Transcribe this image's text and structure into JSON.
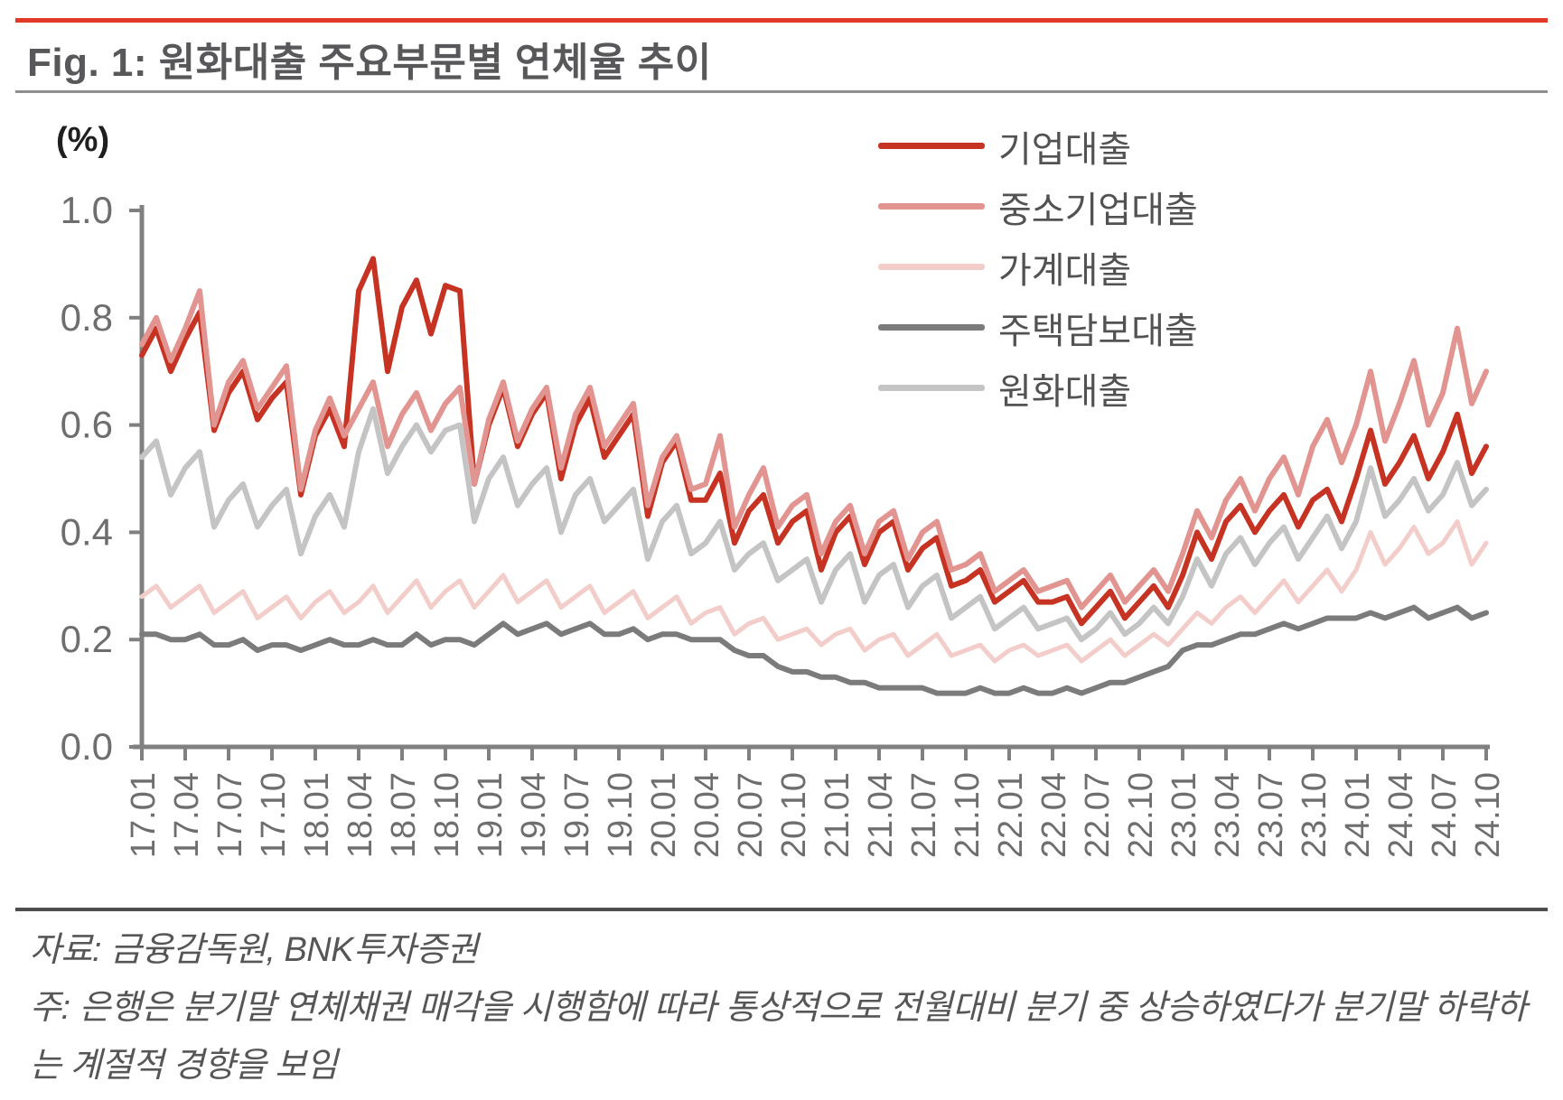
{
  "header": {
    "title": "Fig. 1: 원화대출 주요부문별 연체율 추이"
  },
  "chart_data": {
    "type": "line",
    "title": "원화대출 주요부문별 연체율 추이",
    "unit_label": "(%)",
    "ylabel": "(%)",
    "xlabel": "",
    "ylim": [
      0.0,
      1.0
    ],
    "y_ticks": [
      "0.0",
      "0.2",
      "0.4",
      "0.6",
      "0.8",
      "1.0"
    ],
    "grid": false,
    "legend_position": "upper-right-inside",
    "x_frequency": "monthly",
    "x_start": "17.01",
    "x_end": "24.10",
    "points_per_series": 94,
    "x_tick_labels": [
      "17.01",
      "17.04",
      "17.07",
      "17.10",
      "18.01",
      "18.04",
      "18.07",
      "18.10",
      "19.01",
      "19.04",
      "19.07",
      "19.10",
      "20.01",
      "20.04",
      "20.07",
      "20.10",
      "21.01",
      "21.04",
      "21.07",
      "21.10",
      "22.01",
      "22.04",
      "22.07",
      "22.10",
      "23.01",
      "23.04",
      "23.07",
      "23.10",
      "24.01",
      "24.04",
      "24.07",
      "24.10"
    ],
    "series": [
      {
        "name": "기업대출",
        "color": "#c63322",
        "stroke_width": 6,
        "values": [
          0.73,
          0.78,
          0.7,
          0.76,
          0.81,
          0.59,
          0.66,
          0.7,
          0.61,
          0.65,
          0.68,
          0.47,
          0.58,
          0.63,
          0.56,
          0.85,
          0.91,
          0.7,
          0.82,
          0.87,
          0.77,
          0.86,
          0.85,
          0.49,
          0.6,
          0.67,
          0.56,
          0.62,
          0.66,
          0.5,
          0.6,
          0.65,
          0.54,
          0.58,
          0.62,
          0.43,
          0.53,
          0.57,
          0.46,
          0.46,
          0.51,
          0.38,
          0.44,
          0.47,
          0.38,
          0.42,
          0.44,
          0.33,
          0.4,
          0.43,
          0.34,
          0.4,
          0.42,
          0.33,
          0.37,
          0.39,
          0.3,
          0.31,
          0.33,
          0.27,
          0.29,
          0.31,
          0.27,
          0.27,
          0.28,
          0.23,
          0.26,
          0.29,
          0.24,
          0.27,
          0.3,
          0.26,
          0.32,
          0.4,
          0.35,
          0.42,
          0.45,
          0.4,
          0.44,
          0.47,
          0.41,
          0.46,
          0.48,
          0.42,
          0.5,
          0.59,
          0.49,
          0.53,
          0.58,
          0.5,
          0.55,
          0.62,
          0.51,
          0.56
        ]
      },
      {
        "name": "중소기업대출",
        "color": "#e29490",
        "stroke_width": 6,
        "values": [
          0.75,
          0.8,
          0.72,
          0.78,
          0.85,
          0.6,
          0.68,
          0.72,
          0.63,
          0.67,
          0.71,
          0.48,
          0.59,
          0.65,
          0.58,
          0.63,
          0.68,
          0.56,
          0.62,
          0.66,
          0.59,
          0.64,
          0.67,
          0.49,
          0.61,
          0.68,
          0.57,
          0.63,
          0.67,
          0.52,
          0.62,
          0.67,
          0.56,
          0.6,
          0.64,
          0.45,
          0.54,
          0.58,
          0.48,
          0.49,
          0.58,
          0.41,
          0.47,
          0.52,
          0.41,
          0.45,
          0.47,
          0.36,
          0.42,
          0.45,
          0.36,
          0.42,
          0.44,
          0.35,
          0.4,
          0.42,
          0.33,
          0.34,
          0.36,
          0.29,
          0.31,
          0.33,
          0.29,
          0.3,
          0.31,
          0.26,
          0.29,
          0.32,
          0.27,
          0.3,
          0.33,
          0.29,
          0.36,
          0.44,
          0.39,
          0.46,
          0.5,
          0.44,
          0.5,
          0.54,
          0.47,
          0.56,
          0.61,
          0.53,
          0.6,
          0.7,
          0.57,
          0.64,
          0.72,
          0.6,
          0.66,
          0.78,
          0.64,
          0.7
        ]
      },
      {
        "name": "가계대출",
        "color": "#f3cdc9",
        "stroke_width": 5,
        "values": [
          0.28,
          0.3,
          0.26,
          0.28,
          0.3,
          0.25,
          0.27,
          0.29,
          0.24,
          0.26,
          0.28,
          0.24,
          0.27,
          0.29,
          0.25,
          0.27,
          0.3,
          0.25,
          0.28,
          0.31,
          0.26,
          0.29,
          0.31,
          0.26,
          0.29,
          0.32,
          0.27,
          0.29,
          0.31,
          0.26,
          0.28,
          0.3,
          0.25,
          0.27,
          0.29,
          0.24,
          0.26,
          0.28,
          0.23,
          0.25,
          0.26,
          0.21,
          0.23,
          0.24,
          0.2,
          0.21,
          0.22,
          0.19,
          0.21,
          0.22,
          0.18,
          0.2,
          0.21,
          0.17,
          0.19,
          0.21,
          0.17,
          0.18,
          0.19,
          0.16,
          0.18,
          0.19,
          0.17,
          0.18,
          0.19,
          0.16,
          0.18,
          0.2,
          0.17,
          0.19,
          0.21,
          0.19,
          0.22,
          0.25,
          0.23,
          0.26,
          0.28,
          0.25,
          0.28,
          0.31,
          0.27,
          0.3,
          0.33,
          0.29,
          0.33,
          0.4,
          0.34,
          0.37,
          0.41,
          0.36,
          0.38,
          0.42,
          0.34,
          0.38
        ]
      },
      {
        "name": "주택담보대출",
        "color": "#7b7b7b",
        "stroke_width": 6,
        "values": [
          0.21,
          0.21,
          0.2,
          0.2,
          0.21,
          0.19,
          0.19,
          0.2,
          0.18,
          0.19,
          0.19,
          0.18,
          0.19,
          0.2,
          0.19,
          0.19,
          0.2,
          0.19,
          0.19,
          0.21,
          0.19,
          0.2,
          0.2,
          0.19,
          0.21,
          0.23,
          0.21,
          0.22,
          0.23,
          0.21,
          0.22,
          0.23,
          0.21,
          0.21,
          0.22,
          0.2,
          0.21,
          0.21,
          0.2,
          0.2,
          0.2,
          0.18,
          0.17,
          0.17,
          0.15,
          0.14,
          0.14,
          0.13,
          0.13,
          0.12,
          0.12,
          0.11,
          0.11,
          0.11,
          0.11,
          0.1,
          0.1,
          0.1,
          0.11,
          0.1,
          0.1,
          0.11,
          0.1,
          0.1,
          0.11,
          0.1,
          0.11,
          0.12,
          0.12,
          0.13,
          0.14,
          0.15,
          0.18,
          0.19,
          0.19,
          0.2,
          0.21,
          0.21,
          0.22,
          0.23,
          0.22,
          0.23,
          0.24,
          0.24,
          0.24,
          0.25,
          0.24,
          0.25,
          0.26,
          0.24,
          0.25,
          0.26,
          0.24,
          0.25
        ]
      },
      {
        "name": "원화대출",
        "color": "#c4c4c4",
        "stroke_width": 6,
        "values": [
          0.54,
          0.57,
          0.47,
          0.52,
          0.55,
          0.41,
          0.46,
          0.49,
          0.41,
          0.45,
          0.48,
          0.36,
          0.43,
          0.47,
          0.41,
          0.55,
          0.63,
          0.51,
          0.56,
          0.6,
          0.55,
          0.59,
          0.6,
          0.42,
          0.5,
          0.54,
          0.45,
          0.49,
          0.52,
          0.4,
          0.47,
          0.5,
          0.42,
          0.45,
          0.48,
          0.35,
          0.42,
          0.45,
          0.36,
          0.38,
          0.42,
          0.33,
          0.36,
          0.38,
          0.31,
          0.33,
          0.35,
          0.27,
          0.33,
          0.36,
          0.27,
          0.32,
          0.34,
          0.26,
          0.3,
          0.32,
          0.24,
          0.26,
          0.28,
          0.22,
          0.24,
          0.26,
          0.22,
          0.23,
          0.24,
          0.2,
          0.22,
          0.25,
          0.21,
          0.23,
          0.26,
          0.23,
          0.28,
          0.35,
          0.3,
          0.36,
          0.39,
          0.34,
          0.38,
          0.41,
          0.35,
          0.39,
          0.43,
          0.37,
          0.42,
          0.52,
          0.43,
          0.46,
          0.5,
          0.44,
          0.47,
          0.53,
          0.45,
          0.48
        ]
      }
    ],
    "draw_order": [
      2,
      3,
      4,
      0,
      1
    ]
  },
  "footer": {
    "source": "자료: 금융감독원, BNK투자증권",
    "note_line1": "주: 은행은 분기말 연체채권 매각을 시행함에 따라 통상적으로 전월대비 분기 중 상승하였다가 분기말 하락하",
    "note_line2": "는 계절적 경향을 보임"
  },
  "colors": {
    "top_rule": "#e13a28",
    "title_rule": "#8f8f8f",
    "footer_rule": "#4e4e4e",
    "axis": "#808080",
    "tick_label": "#6e6e6e",
    "title_text": "#58585a",
    "legend_text": "#525252"
  }
}
